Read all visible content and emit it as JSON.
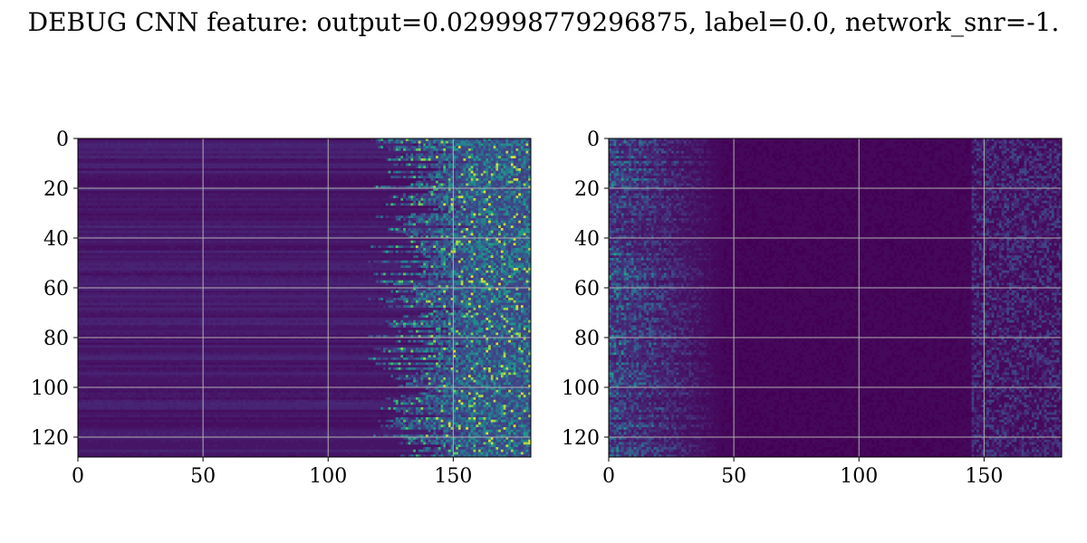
{
  "title": "DEBUG CNN feature: output=0.029998779296875, label=0.0, network_snr=-1.",
  "chart_data": [
    {
      "type": "heatmap",
      "xlim": [
        0,
        181
      ],
      "ylim": [
        128,
        0
      ],
      "xticks": [
        0,
        50,
        100,
        150
      ],
      "yticks": [
        0,
        20,
        40,
        60,
        80,
        100,
        120
      ],
      "grid": true,
      "colormap": "viridis",
      "rows": 128,
      "cols": 181
    },
    {
      "type": "heatmap",
      "xlim": [
        0,
        181
      ],
      "ylim": [
        128,
        0
      ],
      "xticks": [
        0,
        50,
        100,
        150
      ],
      "yticks": [
        0,
        20,
        40,
        60,
        80,
        100,
        120
      ],
      "grid": true,
      "colormap": "viridis",
      "rows": 128,
      "cols": 181
    }
  ],
  "colors": {
    "viridis_dark": "#440154",
    "viridis_mid": "#21918c",
    "viridis_bright": "#5ec962",
    "grid": "#b0b0b0"
  }
}
